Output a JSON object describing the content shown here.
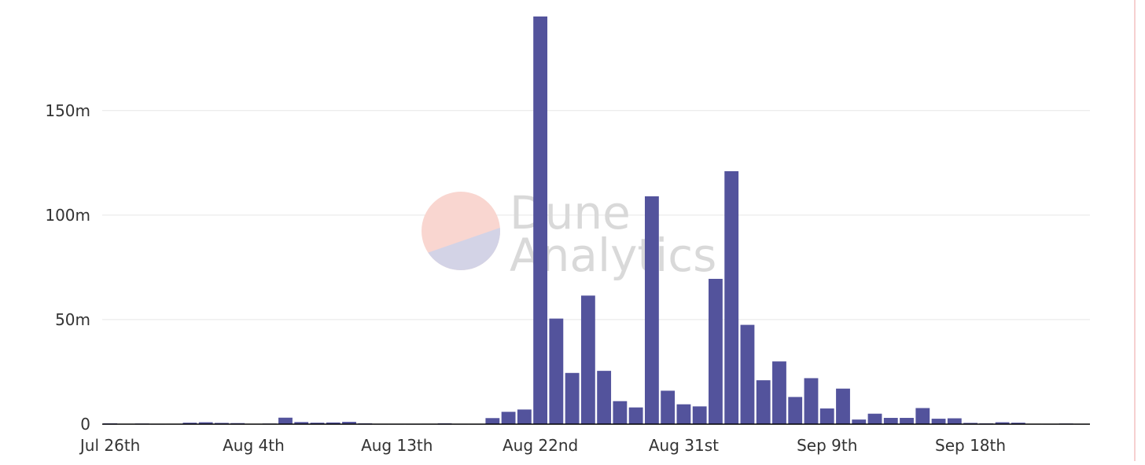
{
  "colors": {
    "bar": "#53539c",
    "grid": "#e6e6e6",
    "axis": "#000000",
    "tick_text": "#333333",
    "frame_edge": "#f6d0d0",
    "watermark_logo_top": "#f9d6d0",
    "watermark_logo_bottom": "#d3d3e6",
    "watermark_text": "#d9d9d9"
  },
  "watermark": {
    "line1": "Dune",
    "line2": "Analytics"
  },
  "chart_data": {
    "type": "bar",
    "title": "",
    "xlabel": "",
    "ylabel": "",
    "ylim": [
      0,
      195000000
    ],
    "yticks": [
      {
        "value": 0,
        "label": "0"
      },
      {
        "value": 50000000,
        "label": "50m"
      },
      {
        "value": 100000000,
        "label": "100m"
      },
      {
        "value": 150000000,
        "label": "150m"
      }
    ],
    "xticks": [
      {
        "category": "2021-07-26",
        "label": "Jul 26th"
      },
      {
        "category": "2021-08-04",
        "label": "Aug 4th"
      },
      {
        "category": "2021-08-13",
        "label": "Aug 13th"
      },
      {
        "category": "2021-08-22",
        "label": "Aug 22nd"
      },
      {
        "category": "2021-08-31",
        "label": "Aug 31st"
      },
      {
        "category": "2021-09-09",
        "label": "Sep 9th"
      },
      {
        "category": "2021-09-18",
        "label": "Sep 18th"
      }
    ],
    "grid": true,
    "legend": "none",
    "categories": [
      "2021-07-26",
      "2021-07-27",
      "2021-07-28",
      "2021-07-29",
      "2021-07-30",
      "2021-07-31",
      "2021-08-01",
      "2021-08-02",
      "2021-08-03",
      "2021-08-04",
      "2021-08-05",
      "2021-08-06",
      "2021-08-07",
      "2021-08-08",
      "2021-08-09",
      "2021-08-10",
      "2021-08-11",
      "2021-08-12",
      "2021-08-13",
      "2021-08-14",
      "2021-08-15",
      "2021-08-16",
      "2021-08-17",
      "2021-08-18",
      "2021-08-19",
      "2021-08-20",
      "2021-08-21",
      "2021-08-22",
      "2021-08-23",
      "2021-08-24",
      "2021-08-25",
      "2021-08-26",
      "2021-08-27",
      "2021-08-28",
      "2021-08-29",
      "2021-08-30",
      "2021-08-31",
      "2021-09-01",
      "2021-09-02",
      "2021-09-03",
      "2021-09-04",
      "2021-09-05",
      "2021-09-06",
      "2021-09-07",
      "2021-09-08",
      "2021-09-09",
      "2021-09-10",
      "2021-09-11",
      "2021-09-12",
      "2021-09-13",
      "2021-09-14",
      "2021-09-15",
      "2021-09-16",
      "2021-09-17",
      "2021-09-18",
      "2021-09-19",
      "2021-09-20",
      "2021-09-21",
      "2021-09-22",
      "2021-09-23",
      "2021-09-24",
      "2021-09-25"
    ],
    "values": [
      400000,
      200000,
      300000,
      100000,
      200000,
      700000,
      900000,
      600000,
      500000,
      200000,
      300000,
      3100000,
      1000000,
      700000,
      800000,
      1100000,
      400000,
      100000,
      100000,
      100000,
      200000,
      400000,
      100000,
      100000,
      2900000,
      5900000,
      7000000,
      195000000,
      50500000,
      24500000,
      61500000,
      25500000,
      11000000,
      8000000,
      109000000,
      16000000,
      9500000,
      8500000,
      69500000,
      121000000,
      47500000,
      21000000,
      30000000,
      13000000,
      22000000,
      7500000,
      17000000,
      2200000,
      5000000,
      3000000,
      3000000,
      7700000,
      2600000,
      2800000,
      600000,
      400000,
      900000,
      700000,
      200000,
      100000,
      300000,
      100000
    ]
  }
}
